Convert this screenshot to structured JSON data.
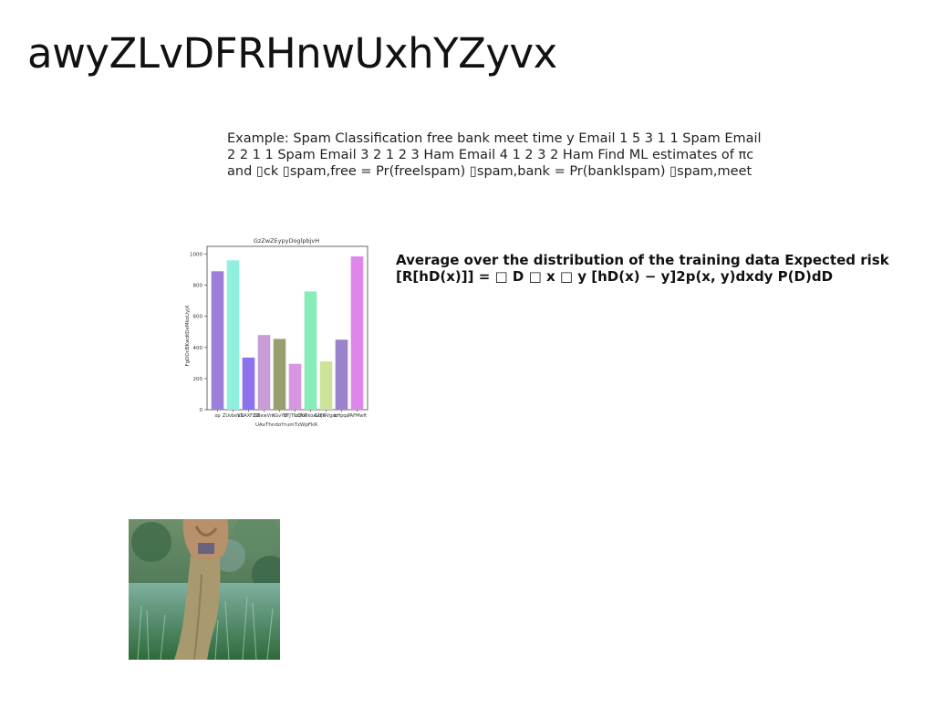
{
  "slide": {
    "title": "awyZLvDFRHnwUxhYZyvx",
    "spam_example": "Example: Spam Classification free bank meet time y Email 1 5 3 1 1 Spam Email 2 2 1 1 Spam Email 3 2 1 2 3 Ham Email 4 1 2 3 2 Ham Find ML estimates of πc and ▯ck ▯spam,free = Pr(freelspam) ▯spam,bank = Pr(banklspam) ▯spam,meet",
    "risk_text": "Average over the distribution of the training data Expected risk [R[hD(x)]] = □ D □ x □ y [hD(x) − y]2p(x, y)dxdy P(D)dD"
  },
  "chart_data": {
    "type": "bar",
    "title": "GzZwZEypyDoglpbjvH",
    "xlabel": "UAxThndoYrumTzWpFkR",
    "ylabel": "FgDOcBKwdtDeMkoUyjX",
    "categories": [
      "op",
      "ZUvbeVC",
      "kNAXFZO",
      "GBewVm",
      "XGvYU",
      "BTjTILQYA",
      "nDufIkoxLbjA",
      "GtFOVgac",
      "bHpqu",
      "PAFMwft"
    ],
    "values": [
      890,
      960,
      335,
      480,
      455,
      295,
      760,
      310,
      450,
      985
    ],
    "colors": [
      "#9b7fd8",
      "#8ff0de",
      "#8e72ec",
      "#c89cd6",
      "#9a9e6e",
      "#d796e0",
      "#86ecb8",
      "#cde39a",
      "#9a82cc",
      "#df86ea"
    ],
    "ylim": [
      0,
      1050
    ],
    "yticks": [
      0,
      200,
      400,
      600,
      800,
      1000
    ],
    "grid": false
  },
  "photo": {
    "subject": "person-in-khaki-pants-in-meadow"
  }
}
